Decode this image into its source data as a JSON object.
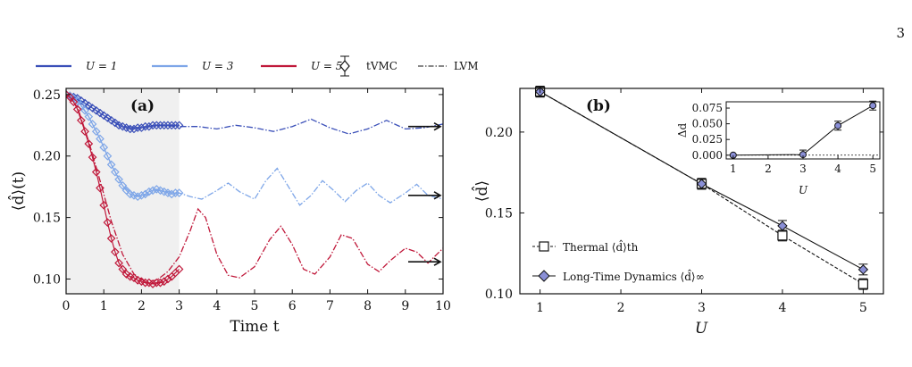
{
  "page_number": "3",
  "legend": {
    "entries": [
      {
        "label": "U = 1",
        "color": "#3a4fb8",
        "style": "solid"
      },
      {
        "label": "U = 3",
        "color": "#7ea6e8",
        "style": "solid"
      },
      {
        "label": "U = 5",
        "color": "#c0183a",
        "style": "solid"
      },
      {
        "label": "tVMC",
        "style": "diamond-marker"
      },
      {
        "label": "LVM",
        "style": "dashdot"
      }
    ]
  },
  "chart_data": [
    {
      "type": "line",
      "panel_label": "(a)",
      "xlabel": "Time t",
      "ylabel": "⟨d̂⟩(t)",
      "xlim": [
        0,
        10
      ],
      "ylim": [
        0.088,
        0.255
      ],
      "xticks": [
        0,
        1,
        2,
        3,
        4,
        5,
        6,
        7,
        8,
        9,
        10
      ],
      "yticks": [
        0.1,
        0.15,
        0.2,
        0.25
      ],
      "shaded_region": [
        0,
        3
      ],
      "series": [
        {
          "name": "U = 1",
          "color": "#3a4fb8",
          "lvm": [
            [
              0,
              0.25
            ],
            [
              0.5,
              0.243
            ],
            [
              1,
              0.233
            ],
            [
              1.5,
              0.224
            ],
            [
              2,
              0.223
            ],
            [
              2.5,
              0.225
            ],
            [
              3,
              0.224
            ],
            [
              3.5,
              0.224
            ],
            [
              4,
              0.222
            ],
            [
              4.5,
              0.225
            ],
            [
              5,
              0.223
            ],
            [
              5.5,
              0.22
            ],
            [
              6,
              0.224
            ],
            [
              6.5,
              0.23
            ],
            [
              7,
              0.223
            ],
            [
              7.5,
              0.218
            ],
            [
              8,
              0.222
            ],
            [
              8.5,
              0.229
            ],
            [
              9,
              0.222
            ],
            [
              9.5,
              0.223
            ],
            [
              10,
              0.226
            ]
          ],
          "tvmc": [
            [
              0,
              0.25
            ],
            [
              0.1,
              0.249
            ],
            [
              0.2,
              0.248
            ],
            [
              0.3,
              0.247
            ],
            [
              0.4,
              0.245
            ],
            [
              0.5,
              0.243
            ],
            [
              0.6,
              0.241
            ],
            [
              0.7,
              0.239
            ],
            [
              0.8,
              0.237
            ],
            [
              0.9,
              0.235
            ],
            [
              1.0,
              0.233
            ],
            [
              1.1,
              0.231
            ],
            [
              1.2,
              0.229
            ],
            [
              1.3,
              0.227
            ],
            [
              1.4,
              0.225
            ],
            [
              1.5,
              0.224
            ],
            [
              1.6,
              0.223
            ],
            [
              1.7,
              0.222
            ],
            [
              1.8,
              0.222
            ],
            [
              1.9,
              0.223
            ],
            [
              2.0,
              0.223
            ],
            [
              2.1,
              0.224
            ],
            [
              2.2,
              0.224
            ],
            [
              2.3,
              0.225
            ],
            [
              2.4,
              0.225
            ],
            [
              2.5,
              0.225
            ],
            [
              2.6,
              0.225
            ],
            [
              2.7,
              0.225
            ],
            [
              2.8,
              0.225
            ],
            [
              2.9,
              0.225
            ],
            [
              3.0,
              0.225
            ]
          ],
          "long_time": 0.224
        },
        {
          "name": "U = 3",
          "color": "#7ea6e8",
          "lvm": [
            [
              0,
              0.25
            ],
            [
              0.3,
              0.245
            ],
            [
              0.6,
              0.232
            ],
            [
              0.9,
              0.214
            ],
            [
              1.2,
              0.193
            ],
            [
              1.5,
              0.176
            ],
            [
              1.8,
              0.168
            ],
            [
              2.1,
              0.168
            ],
            [
              2.4,
              0.172
            ],
            [
              2.7,
              0.171
            ],
            [
              3,
              0.17
            ],
            [
              3.3,
              0.167
            ],
            [
              3.6,
              0.165
            ],
            [
              4,
              0.172
            ],
            [
              4.3,
              0.178
            ],
            [
              4.6,
              0.171
            ],
            [
              5,
              0.165
            ],
            [
              5.3,
              0.18
            ],
            [
              5.6,
              0.19
            ],
            [
              5.9,
              0.175
            ],
            [
              6.2,
              0.16
            ],
            [
              6.5,
              0.168
            ],
            [
              6.8,
              0.18
            ],
            [
              7.1,
              0.172
            ],
            [
              7.4,
              0.163
            ],
            [
              7.7,
              0.172
            ],
            [
              8,
              0.178
            ],
            [
              8.3,
              0.168
            ],
            [
              8.6,
              0.162
            ],
            [
              9,
              0.17
            ],
            [
              9.3,
              0.177
            ],
            [
              9.6,
              0.168
            ],
            [
              10,
              0.165
            ]
          ],
          "tvmc": [
            [
              0,
              0.25
            ],
            [
              0.1,
              0.249
            ],
            [
              0.2,
              0.247
            ],
            [
              0.3,
              0.245
            ],
            [
              0.4,
              0.241
            ],
            [
              0.5,
              0.237
            ],
            [
              0.6,
              0.232
            ],
            [
              0.7,
              0.226
            ],
            [
              0.8,
              0.22
            ],
            [
              0.9,
              0.214
            ],
            [
              1.0,
              0.207
            ],
            [
              1.1,
              0.2
            ],
            [
              1.2,
              0.193
            ],
            [
              1.3,
              0.187
            ],
            [
              1.4,
              0.181
            ],
            [
              1.5,
              0.176
            ],
            [
              1.6,
              0.172
            ],
            [
              1.7,
              0.169
            ],
            [
              1.8,
              0.168
            ],
            [
              1.9,
              0.167
            ],
            [
              2.0,
              0.168
            ],
            [
              2.1,
              0.169
            ],
            [
              2.2,
              0.171
            ],
            [
              2.3,
              0.172
            ],
            [
              2.4,
              0.173
            ],
            [
              2.5,
              0.172
            ],
            [
              2.6,
              0.171
            ],
            [
              2.7,
              0.17
            ],
            [
              2.8,
              0.169
            ],
            [
              2.9,
              0.17
            ],
            [
              3.0,
              0.17
            ]
          ],
          "long_time": 0.168
        },
        {
          "name": "U = 5",
          "color": "#c0183a",
          "lvm": [
            [
              0,
              0.25
            ],
            [
              0.3,
              0.24
            ],
            [
              0.6,
              0.212
            ],
            [
              0.9,
              0.18
            ],
            [
              1.2,
              0.147
            ],
            [
              1.5,
              0.12
            ],
            [
              1.8,
              0.104
            ],
            [
              2.1,
              0.098
            ],
            [
              2.4,
              0.099
            ],
            [
              2.7,
              0.106
            ],
            [
              3,
              0.118
            ],
            [
              3.3,
              0.14
            ],
            [
              3.5,
              0.157
            ],
            [
              3.7,
              0.15
            ],
            [
              4,
              0.12
            ],
            [
              4.3,
              0.103
            ],
            [
              4.6,
              0.101
            ],
            [
              5,
              0.11
            ],
            [
              5.4,
              0.132
            ],
            [
              5.7,
              0.143
            ],
            [
              6,
              0.128
            ],
            [
              6.3,
              0.108
            ],
            [
              6.6,
              0.104
            ],
            [
              7,
              0.118
            ],
            [
              7.3,
              0.136
            ],
            [
              7.6,
              0.133
            ],
            [
              8,
              0.112
            ],
            [
              8.3,
              0.106
            ],
            [
              8.6,
              0.115
            ],
            [
              9,
              0.125
            ],
            [
              9.3,
              0.122
            ],
            [
              9.6,
              0.113
            ],
            [
              10,
              0.125
            ]
          ],
          "tvmc": [
            [
              0,
              0.25
            ],
            [
              0.1,
              0.248
            ],
            [
              0.2,
              0.244
            ],
            [
              0.3,
              0.238
            ],
            [
              0.4,
              0.229
            ],
            [
              0.5,
              0.22
            ],
            [
              0.6,
              0.21
            ],
            [
              0.7,
              0.199
            ],
            [
              0.8,
              0.187
            ],
            [
              0.9,
              0.174
            ],
            [
              1.0,
              0.16
            ],
            [
              1.1,
              0.146
            ],
            [
              1.2,
              0.133
            ],
            [
              1.3,
              0.122
            ],
            [
              1.4,
              0.113
            ],
            [
              1.5,
              0.108
            ],
            [
              1.6,
              0.104
            ],
            [
              1.7,
              0.102
            ],
            [
              1.8,
              0.101
            ],
            [
              1.9,
              0.099
            ],
            [
              2.0,
              0.098
            ],
            [
              2.1,
              0.097
            ],
            [
              2.2,
              0.097
            ],
            [
              2.3,
              0.096
            ],
            [
              2.4,
              0.097
            ],
            [
              2.5,
              0.097
            ],
            [
              2.6,
              0.098
            ],
            [
              2.7,
              0.1
            ],
            [
              2.8,
              0.102
            ],
            [
              2.9,
              0.105
            ],
            [
              3.0,
              0.108
            ]
          ],
          "long_time": 0.114
        }
      ]
    },
    {
      "type": "line",
      "panel_label": "(b)",
      "xlabel": "U",
      "ylabel": "⟨d̂⟩",
      "xlim": [
        0.75,
        5.25
      ],
      "ylim": [
        0.1,
        0.227
      ],
      "xticks": [
        1,
        2,
        3,
        4,
        5
      ],
      "yticks": [
        0.1,
        0.15,
        0.2
      ],
      "series": [
        {
          "name": "Thermal ⟨d̂⟩th",
          "style": "dashed-square",
          "x": [
            1,
            3,
            4,
            5
          ],
          "y": [
            0.225,
            0.168,
            0.136,
            0.106
          ]
        },
        {
          "name": "Long-Time Dynamics ⟨d̂⟩∞",
          "style": "solid-diamond",
          "x": [
            1,
            3,
            4,
            5
          ],
          "y": [
            0.225,
            0.168,
            0.142,
            0.115
          ]
        }
      ],
      "legend_entries": [
        "Thermal ⟨d̂⟩th",
        "Long-Time Dynamics ⟨d̂⟩∞"
      ],
      "inset": {
        "type": "line",
        "xlabel": "U",
        "ylabel": "Δd",
        "xticks": [
          1,
          2,
          3,
          4,
          5
        ],
        "yticks": [
          "0.000",
          "0.025",
          "0.050",
          "0.075"
        ],
        "ylim": [
          -0.006,
          0.085
        ],
        "x": [
          1,
          3,
          4,
          5
        ],
        "y": [
          0.0,
          0.001,
          0.047,
          0.079
        ]
      }
    }
  ]
}
